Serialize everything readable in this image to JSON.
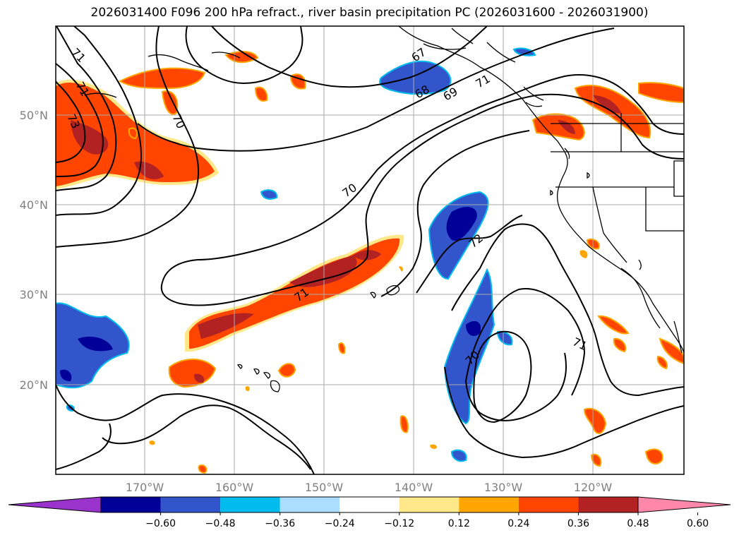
{
  "title": "2026031400 F096 200 hPa refract., river basin precipitation PC (2026031600 - 2026031900)",
  "map": {
    "lat_labels": [
      "50°N",
      "40°N",
      "30°N",
      "20°N"
    ],
    "lon_labels": [
      "170°W",
      "160°W",
      "150°W",
      "140°W",
      "130°W",
      "120°W"
    ],
    "contour_labels": [
      "71",
      "71",
      "70",
      "73",
      "70",
      "67",
      "68",
      "69",
      "71",
      "70",
      "72",
      "71",
      "71",
      "70"
    ]
  },
  "colorbar": {
    "ticks": [
      "−0.60",
      "−0.48",
      "−0.36",
      "−0.24",
      "−0.12",
      "0.12",
      "0.24",
      "0.36",
      "0.48",
      "0.60"
    ],
    "colors": [
      "#9933cc",
      "#000099",
      "#3355cc",
      "#00bbee",
      "#aaddff",
      "#ffffff",
      "#ffe88a",
      "#ffa500",
      "#ff4500",
      "#b22222",
      "#ff88aa"
    ]
  },
  "colors": {
    "neg_weak": "#00bbee",
    "neg_mid": "#3355cc",
    "neg_strong": "#000099",
    "pos_weak": "#ffe88a",
    "pos_mid": "#ffa500",
    "pos_strong": "#ff4500",
    "pos_max": "#b22222",
    "grid": "#aaaaaa",
    "contour": "#000000"
  }
}
